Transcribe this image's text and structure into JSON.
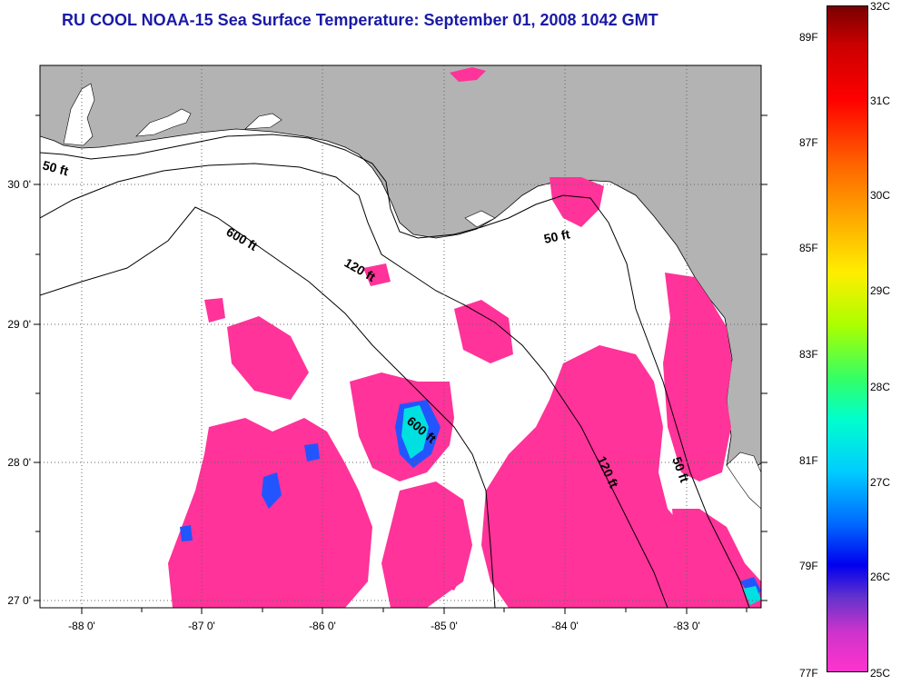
{
  "title": "RU COOL  NOAA-15  Sea Surface Temperature:  September 01, 2008 1042 GMT",
  "map": {
    "lon_labels": [
      "-88 0'",
      "-87 0'",
      "-86 0'",
      "-85 0'",
      "-84 0'",
      "-83 0'"
    ],
    "lat_labels": [
      "30 0'",
      "29 0'",
      "28 0'",
      "27 0'"
    ],
    "contour_labels": [
      "50 ft",
      "600 ft",
      "120 ft",
      "50 ft",
      "600 ft",
      "120 ft",
      "50 ft"
    ],
    "colors": {
      "land": "#b3b3b3",
      "no_data": "#ffffff",
      "warm_sst": "#ff3399",
      "cool_sst": "#00e0e0",
      "mid_sst": "#2255ff"
    }
  },
  "colorbar": {
    "celsius_labels": [
      "32C",
      "31C",
      "30C",
      "29C",
      "28C",
      "27C",
      "26C",
      "25C"
    ],
    "fahrenheit_labels": [
      "89F",
      "87F",
      "85F",
      "83F",
      "81F",
      "79F",
      "77F"
    ],
    "range_c": [
      25,
      32
    ],
    "range_f": [
      77,
      89.6
    ]
  }
}
